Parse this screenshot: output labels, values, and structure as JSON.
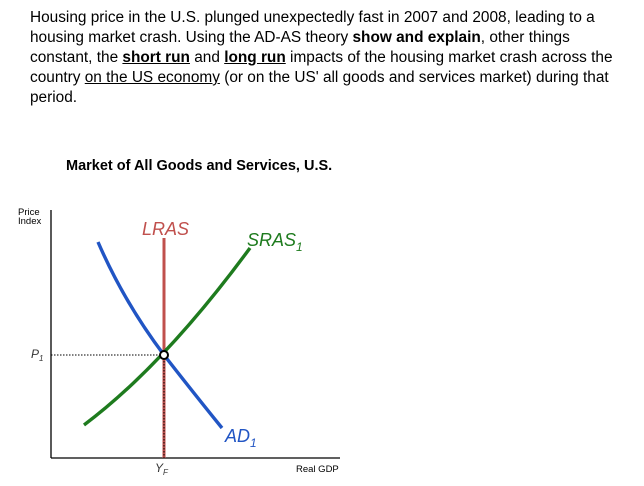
{
  "question": {
    "part1": "Housing price in the U.S. plunged unexpectedly fast in 2007 and 2008, leading to a housing market crash. Using the AD-AS theory ",
    "bold1": "show and explain",
    "part2": ", other things constant, the ",
    "bold2": "short run",
    "part3": " and ",
    "bold3": "long run",
    "part4": " impacts of the housing market crash across the country ",
    "underlined1": "on the US economy",
    "part5": " (or on the US' all goods and services market) during that period."
  },
  "diagram": {
    "title": "Market of All Goods and Services, U.S.",
    "y_axis_title": "Price\nIndex",
    "x_axis_title": "Real GDP",
    "curves": {
      "lras": {
        "label": "LRAS",
        "color": "#c0504d"
      },
      "sras": {
        "label": "SRAS",
        "subscript": "1",
        "color": "#1e7b1e"
      },
      "ad": {
        "label": "AD",
        "subscript": "1",
        "color": "#2155c4"
      }
    },
    "equilibrium": {
      "price_label": "P",
      "price_subscript": "1",
      "output_label": "Y",
      "output_subscript": "F"
    }
  }
}
